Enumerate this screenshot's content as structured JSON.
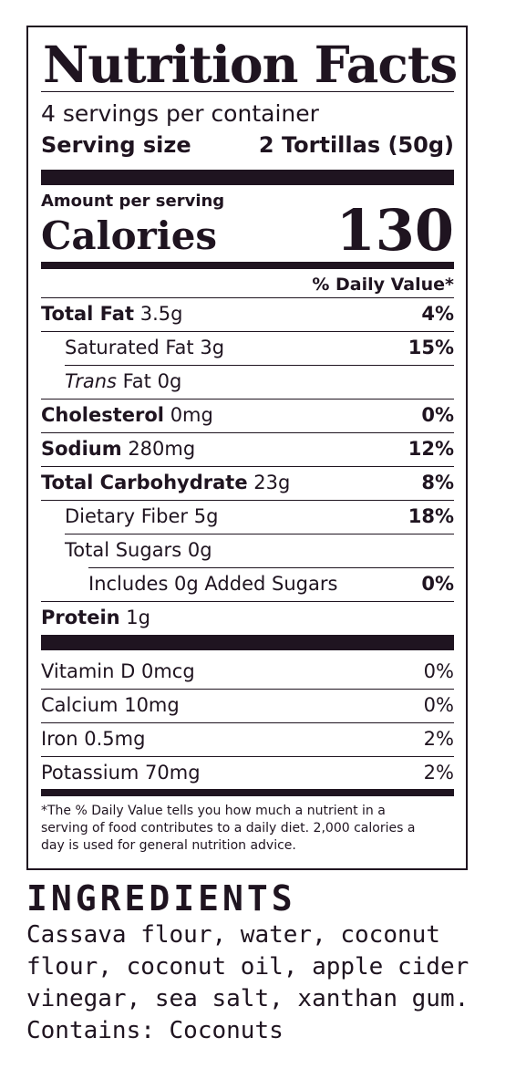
{
  "label": {
    "title": "Nutrition Facts",
    "servings_per_container": "4 servings per container",
    "serving_size_label": "Serving size",
    "serving_size_value": "2 Tortillas (50g)",
    "amount_per_serving": "Amount per serving",
    "calories_label": "Calories",
    "calories_value": "130",
    "daily_value_header": "% Daily Value*",
    "nutrients": [
      {
        "name": "Total Fat",
        "amount": "3.5g",
        "dv": "4%"
      },
      {
        "name": "Saturated Fat",
        "amount": "3g",
        "dv": "15%"
      },
      {
        "name_prefix": "Trans",
        "name": "Fat",
        "amount": "0g",
        "dv": ""
      },
      {
        "name": "Cholesterol",
        "amount": "0mg",
        "dv": "0%"
      },
      {
        "name": "Sodium",
        "amount": "280mg",
        "dv": "12%"
      },
      {
        "name": "Total Carbohydrate",
        "amount": "23g",
        "dv": "8%"
      },
      {
        "name": "Dietary Fiber",
        "amount": "5g",
        "dv": "18%"
      },
      {
        "name": "Total Sugars",
        "amount": "0g",
        "dv": ""
      },
      {
        "name": "Includes 0g Added Sugars",
        "amount": "",
        "dv": "0%"
      },
      {
        "name": "Protein",
        "amount": "1g",
        "dv": ""
      }
    ],
    "vitamins": [
      {
        "name": "Vitamin D",
        "amount": "0mcg",
        "dv": "0%"
      },
      {
        "name": "Calcium",
        "amount": "10mg",
        "dv": "0%"
      },
      {
        "name": "Iron",
        "amount": "0.5mg",
        "dv": "2%"
      },
      {
        "name": "Potassium",
        "amount": "70mg",
        "dv": "2%"
      }
    ],
    "footnote": "*The % Daily Value tells you how much a nutrient in a serving of food contributes to a daily diet. 2,000 calories a day is used for general nutrition advice."
  },
  "ingredients": {
    "title": "INGREDIENTS",
    "text_line1": "Cassava flour, water, coconut",
    "text_line2": "flour, coconut oil, apple cider",
    "text_line3": "vinegar, sea salt, xanthan gum.",
    "contains": "Contains: Coconuts"
  },
  "colors": {
    "ink": "#1f1420",
    "background": "#ffffff"
  }
}
